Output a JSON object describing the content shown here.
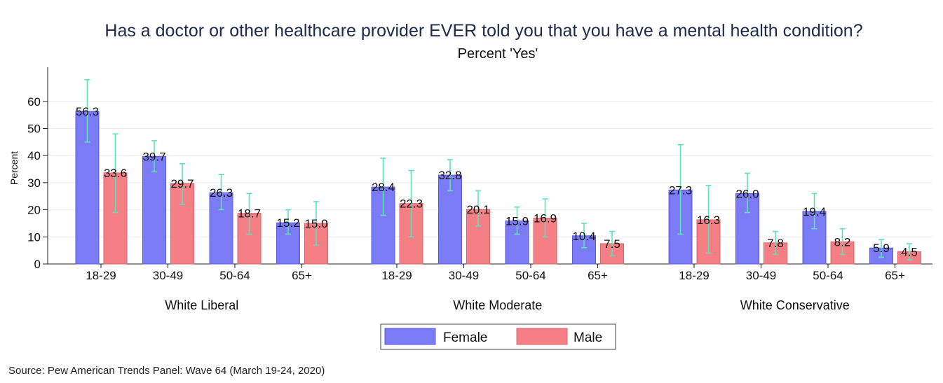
{
  "chart_data": {
    "type": "bar",
    "title": "Has a doctor or other healthcare provider EVER told you that you have a mental health condition?",
    "subtitle": "Percent 'Yes'",
    "ylabel": "Percent",
    "ylim": [
      0,
      60
    ],
    "yticks": [
      "0",
      "10",
      "20",
      "30",
      "40",
      "50",
      "60"
    ],
    "grid": true,
    "legend_position": "bottom",
    "groups": [
      {
        "name": "White Liberal",
        "categories": [
          "18-29",
          "30-49",
          "50-64",
          "65+"
        ],
        "series": [
          {
            "name": "Female",
            "values": [
              56.3,
              39.7,
              26.3,
              15.2
            ],
            "labels": [
              "56.3",
              "39.7",
              "26.3",
              "15.2"
            ],
            "ci_low": [
              45,
              34,
              20,
              11
            ],
            "ci_high": [
              68,
              45.5,
              33,
              20
            ]
          },
          {
            "name": "Male",
            "values": [
              33.6,
              29.7,
              18.7,
              15.0
            ],
            "labels": [
              "33.6",
              "29.7",
              "18.7",
              "15.0"
            ],
            "ci_low": [
              19,
              22,
              11,
              7
            ],
            "ci_high": [
              48,
              37,
              26,
              23
            ]
          }
        ]
      },
      {
        "name": "White Moderate",
        "categories": [
          "18-29",
          "30-49",
          "50-64",
          "65+"
        ],
        "series": [
          {
            "name": "Female",
            "values": [
              28.4,
              32.8,
              15.9,
              10.4
            ],
            "labels": [
              "28.4",
              "32.8",
              "15.9",
              "10.4"
            ],
            "ci_low": [
              18,
              27,
              11,
              6
            ],
            "ci_high": [
              39,
              38.5,
              21,
              15
            ]
          },
          {
            "name": "Male",
            "values": [
              22.3,
              20.1,
              16.9,
              7.5
            ],
            "labels": [
              "22.3",
              "20.1",
              "16.9",
              "7.5"
            ],
            "ci_low": [
              10,
              14,
              10,
              3
            ],
            "ci_high": [
              34.5,
              27,
              24,
              12
            ]
          }
        ]
      },
      {
        "name": "White Conservative",
        "categories": [
          "18-29",
          "30-49",
          "50-64",
          "65+"
        ],
        "series": [
          {
            "name": "Female",
            "values": [
              27.3,
              26.0,
              19.4,
              5.9
            ],
            "labels": [
              "27.3",
              "26.0",
              "19.4",
              "5.9"
            ],
            "ci_low": [
              11,
              19,
              13,
              2.5
            ],
            "ci_high": [
              44,
              33.5,
              26,
              9
            ]
          },
          {
            "name": "Male",
            "values": [
              16.3,
              7.8,
              8.2,
              4.5
            ],
            "labels": [
              "16.3",
              "7.8",
              "8.2",
              "4.5"
            ],
            "ci_low": [
              4,
              3.5,
              3.5,
              1.5
            ],
            "ci_high": [
              29,
              12,
              13,
              7.5
            ]
          }
        ]
      }
    ],
    "colors": {
      "Female": "#7b7bf5",
      "Female_edge": "#5a5ae0",
      "Male": "#f47f85",
      "Male_edge": "#d9636b",
      "ci": "#5fe0b8",
      "grid": "#ececf4"
    }
  },
  "legend": [
    "Female",
    "Male"
  ],
  "source": "Source: Pew American Trends Panel: Wave 64 (March 19-24, 2020)"
}
